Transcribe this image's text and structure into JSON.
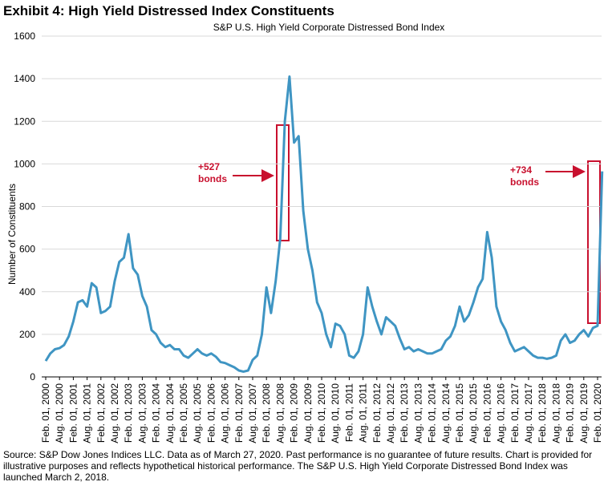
{
  "chart_data": {
    "type": "line",
    "title": "Exhibit 4: High Yield Distressed Index Constituents",
    "subtitle": "S&P U.S. High Yield Corporate Distressed Bond Index",
    "y_label": "Number of Constituents",
    "source": "Source: S&P Dow Jones Indices LLC. Data as of March 27, 2020. Past performance is no guarantee of future results. Chart is provided for illustrative purposes and reflects hypothetical historical performance. The S&P U.S. High Yield Corporate Distressed Bond Index was launched March 2, 2018.",
    "annotations": [
      [
        "+527",
        "bonds"
      ],
      [
        "+734",
        "bonds"
      ]
    ],
    "ylim": [
      0,
      1600
    ],
    "yticks": [
      0,
      200,
      400,
      600,
      800,
      1000,
      1200,
      1400,
      1600
    ],
    "grid": true,
    "categories": [
      "Feb. 01, 2000",
      null,
      null,
      "Aug. 01, 2000",
      null,
      null,
      "Feb. 01, 2001",
      null,
      null,
      "Aug. 01, 2001",
      null,
      null,
      "Feb. 01, 2002",
      null,
      null,
      "Aug. 01, 2002",
      null,
      null,
      "Feb. 01, 2003",
      null,
      null,
      "Aug. 01, 2003",
      null,
      null,
      "Feb. 01, 2004",
      null,
      null,
      "Aug. 01, 2004",
      null,
      null,
      "Feb. 01, 2005",
      null,
      null,
      "Aug. 01, 2005",
      null,
      null,
      "Feb. 01, 2006",
      null,
      null,
      "Aug. 01, 2006",
      null,
      null,
      "Feb. 01, 2007",
      null,
      null,
      "Aug. 01, 2007",
      null,
      null,
      "Feb. 01, 2008",
      null,
      null,
      "Aug. 01, 2008",
      null,
      null,
      "Feb. 01, 2009",
      null,
      null,
      "Aug. 01, 2009",
      null,
      null,
      "Feb. 01, 2010",
      null,
      null,
      "Aug. 01, 2010",
      null,
      null,
      "Feb. 01, 2011",
      null,
      null,
      "Aug. 01, 2011",
      null,
      null,
      "Feb. 01, 2012",
      null,
      null,
      "Aug. 01, 2012",
      null,
      null,
      "Feb. 01, 2013",
      null,
      null,
      "Aug. 01, 2013",
      null,
      null,
      "Feb. 01, 2014",
      null,
      null,
      "Aug. 01, 2014",
      null,
      null,
      "Feb. 01, 2015",
      null,
      null,
      "Aug. 01, 2015",
      null,
      null,
      "Feb. 01, 2016",
      null,
      null,
      "Aug. 01, 2016",
      null,
      null,
      "Feb. 01, 2017",
      null,
      null,
      "Aug. 01, 2017",
      null,
      null,
      "Feb. 01, 2018",
      null,
      null,
      "Aug. 01, 2018",
      null,
      null,
      "Feb. 01, 2019",
      null,
      null,
      "Aug. 01, 2019",
      null,
      null,
      "Feb. 01, 2020",
      null
    ],
    "series": [
      {
        "color": "#3f95c3",
        "values": [
          75,
          110,
          130,
          135,
          150,
          190,
          260,
          350,
          360,
          330,
          440,
          420,
          300,
          310,
          330,
          450,
          540,
          560,
          670,
          510,
          480,
          380,
          330,
          220,
          200,
          160,
          140,
          150,
          130,
          130,
          100,
          90,
          110,
          130,
          110,
          100,
          110,
          95,
          70,
          65,
          55,
          45,
          30,
          25,
          30,
          80,
          100,
          200,
          420,
          300,
          450,
          650,
          1200,
          1410,
          1100,
          1130,
          780,
          600,
          500,
          350,
          300,
          200,
          140,
          250,
          240,
          200,
          100,
          90,
          120,
          200,
          420,
          330,
          260,
          200,
          280,
          260,
          240,
          180,
          130,
          140,
          120,
          130,
          120,
          110,
          110,
          120,
          130,
          170,
          190,
          240,
          330,
          260,
          290,
          350,
          420,
          460,
          680,
          560,
          330,
          260,
          220,
          160,
          120,
          130,
          140,
          120,
          100,
          90,
          90,
          85,
          90,
          100,
          170,
          200,
          160,
          170,
          200,
          220,
          190,
          230,
          240,
          965
        ]
      }
    ]
  }
}
